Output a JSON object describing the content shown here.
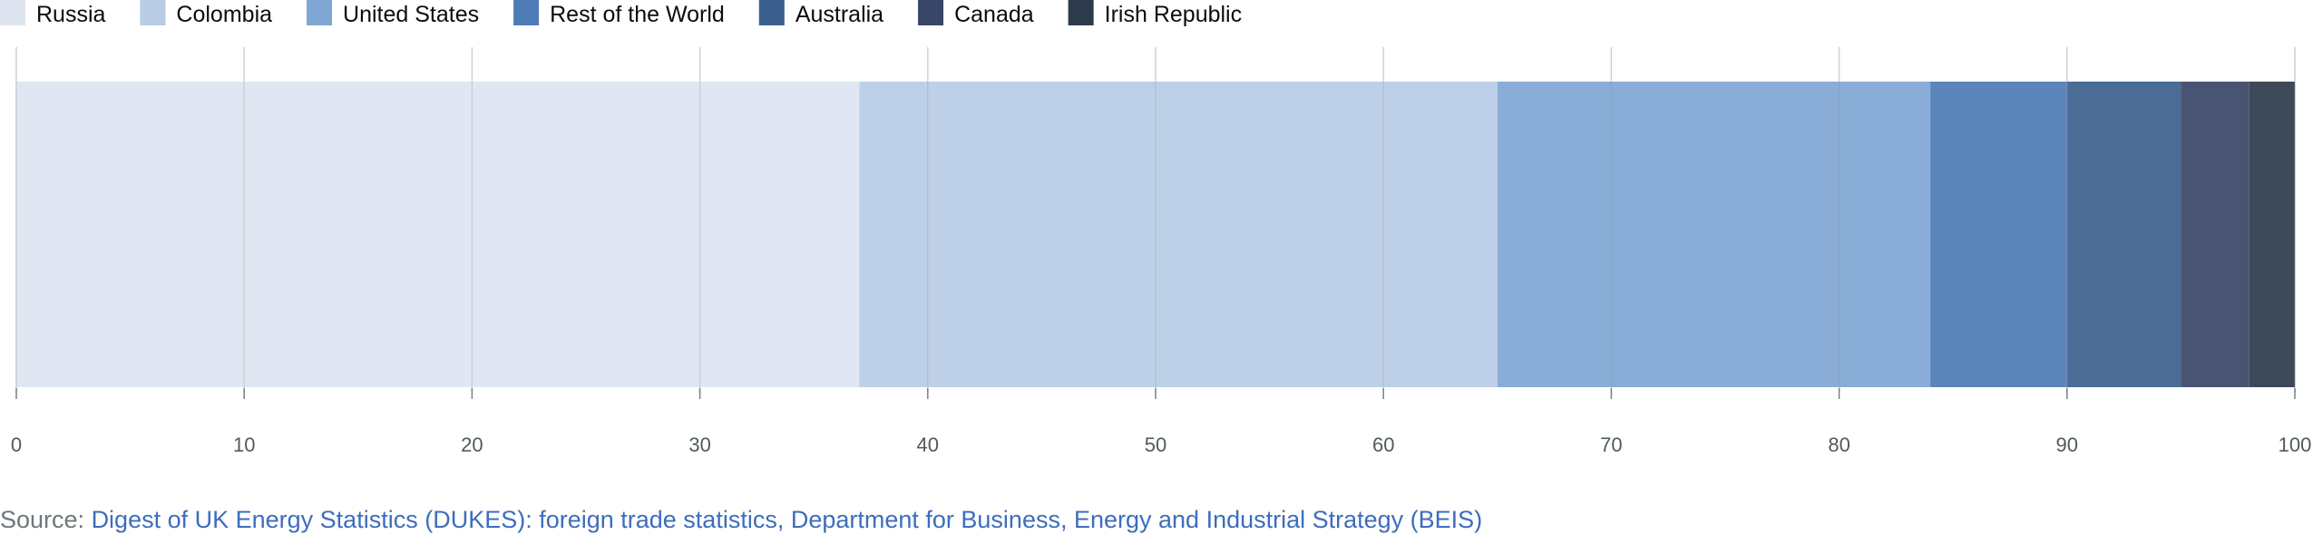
{
  "chart_data": {
    "type": "bar",
    "orientation": "horizontal-stacked",
    "series": [
      {
        "name": "Russia",
        "value": 37,
        "color": "#dee5f1"
      },
      {
        "name": "Colombia",
        "value": 28,
        "color": "#b8cce6"
      },
      {
        "name": "United States",
        "value": 19,
        "color": "#7fa6d3"
      },
      {
        "name": "Rest of the World",
        "value": 6,
        "color": "#4e7bb5"
      },
      {
        "name": "Australia",
        "value": 5,
        "color": "#3b5f8c"
      },
      {
        "name": "Canada",
        "value": 3,
        "color": "#384566"
      },
      {
        "name": "Irish Republic",
        "value": 2,
        "color": "#2d3a4b"
      }
    ],
    "xlim": [
      0,
      100
    ],
    "x_ticks": [
      "0",
      "10",
      "20",
      "30",
      "40",
      "50",
      "60",
      "70",
      "80",
      "90",
      "100"
    ],
    "grid": true,
    "legend_position": "top-left"
  },
  "source": {
    "prefix": "Source: ",
    "link_text": "Digest of UK Energy Statistics (DUKES): foreign trade statistics, Department for Business, Energy and Industrial Strategy (BEIS)"
  }
}
